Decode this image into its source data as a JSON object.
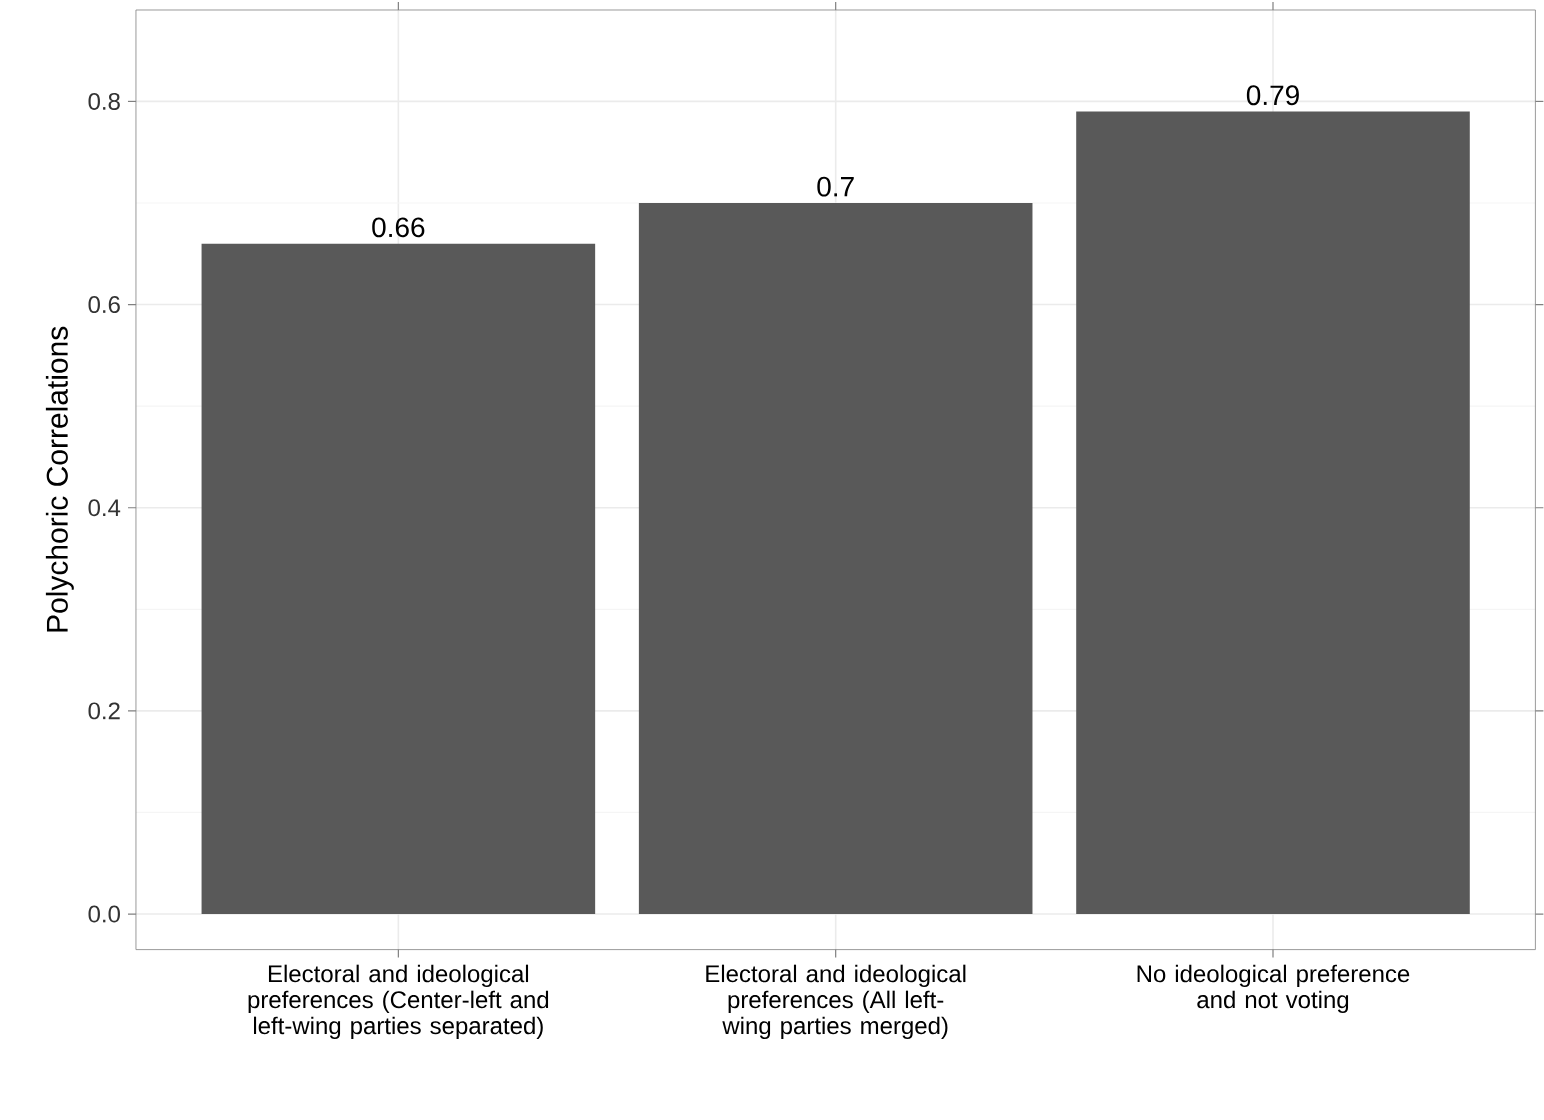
{
  "chart_data": {
    "type": "bar",
    "ylabel": "Polychoric Correlations",
    "categories": [
      "Electoral and ideological preferences (Center-left and left-wing parties separated)",
      "Electoral and ideological preferences (All left-wing parties merged)",
      "No ideological preference and not voting"
    ],
    "values": [
      0.66,
      0.7,
      0.79
    ],
    "color": "#595959",
    "data_labels": true,
    "ylim": [
      -0.035,
      0.89
    ],
    "yticks": [
      {
        "value": 0,
        "label": "0.0"
      },
      0.2,
      0.4,
      0.6,
      0.8
    ],
    "grid": true
  }
}
